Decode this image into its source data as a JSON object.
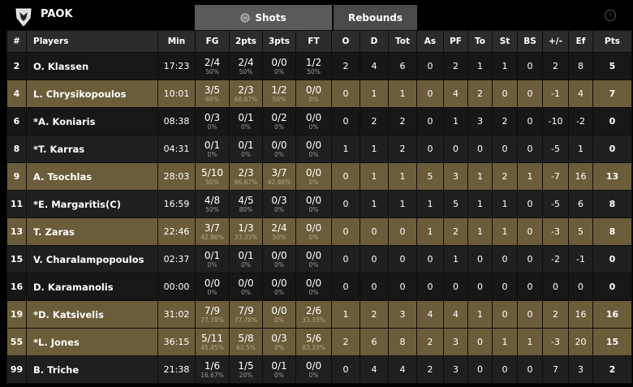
{
  "header": {
    "team": "PAOK",
    "logo_icon": "paok-eagle-crest",
    "tabs": [
      {
        "label": "Shots",
        "icon": "basketball-icon",
        "active": true
      },
      {
        "label": "Rebounds",
        "active": false
      }
    ],
    "info_icon": "info-icon"
  },
  "colors": {
    "highlight_row": "#6b5d3a",
    "dark_row": "#171717",
    "header": "#2b2b2b",
    "active_tab": "#5a5a5a"
  },
  "columns": [
    "#",
    "Players",
    "Min",
    "FG",
    "2pts",
    "3pts",
    "FT",
    "O",
    "D",
    "Tot",
    "As",
    "PF",
    "To",
    "St",
    "BS",
    "+/-",
    "Ef",
    "Pts"
  ],
  "rows": [
    {
      "no": "2",
      "name": "O. Klassen",
      "min": "17:23",
      "fg": "2/4",
      "fgp": "50%",
      "p2": "2/4",
      "p2p": "50%",
      "p3": "0/0",
      "p3p": "0%",
      "ft": "1/2",
      "ftp": "50%",
      "o": "2",
      "d": "4",
      "tot": "6",
      "as": "0",
      "pf": "2",
      "to": "1",
      "st": "1",
      "bs": "0",
      "pm": "2",
      "ef": "8",
      "pts": "5",
      "highlighted": false
    },
    {
      "no": "4",
      "name": "L. Chrysikopoulos",
      "min": "10:01",
      "fg": "3/5",
      "fgp": "60%",
      "p2": "2/3",
      "p2p": "66.67%",
      "p3": "1/2",
      "p3p": "50%",
      "ft": "0/0",
      "ftp": "0%",
      "o": "0",
      "d": "1",
      "tot": "1",
      "as": "0",
      "pf": "4",
      "to": "2",
      "st": "0",
      "bs": "0",
      "pm": "-1",
      "ef": "4",
      "pts": "7",
      "highlighted": true
    },
    {
      "no": "6",
      "name": "*A. Koniaris",
      "min": "08:38",
      "fg": "0/3",
      "fgp": "0%",
      "p2": "0/1",
      "p2p": "0%",
      "p3": "0/2",
      "p3p": "0%",
      "ft": "0/0",
      "ftp": "0%",
      "o": "0",
      "d": "2",
      "tot": "2",
      "as": "0",
      "pf": "1",
      "to": "3",
      "st": "2",
      "bs": "0",
      "pm": "-10",
      "ef": "-2",
      "pts": "0",
      "highlighted": false
    },
    {
      "no": "8",
      "name": "*T. Karras",
      "min": "04:31",
      "fg": "0/1",
      "fgp": "0%",
      "p2": "0/1",
      "p2p": "0%",
      "p3": "0/0",
      "p3p": "0%",
      "ft": "0/0",
      "ftp": "0%",
      "o": "1",
      "d": "1",
      "tot": "2",
      "as": "0",
      "pf": "0",
      "to": "0",
      "st": "0",
      "bs": "0",
      "pm": "-5",
      "ef": "1",
      "pts": "0",
      "highlighted": false
    },
    {
      "no": "9",
      "name": "A. Tsochlas",
      "min": "28:03",
      "fg": "5/10",
      "fgp": "50%",
      "p2": "2/3",
      "p2p": "66.67%",
      "p3": "3/7",
      "p3p": "42.86%",
      "ft": "0/0",
      "ftp": "0%",
      "o": "0",
      "d": "1",
      "tot": "1",
      "as": "5",
      "pf": "3",
      "to": "1",
      "st": "2",
      "bs": "1",
      "pm": "-7",
      "ef": "16",
      "pts": "13",
      "highlighted": true
    },
    {
      "no": "11",
      "name": "*E. Margaritis(C)",
      "min": "16:59",
      "fg": "4/8",
      "fgp": "50%",
      "p2": "4/5",
      "p2p": "80%",
      "p3": "0/3",
      "p3p": "0%",
      "ft": "0/0",
      "ftp": "0%",
      "o": "0",
      "d": "1",
      "tot": "1",
      "as": "1",
      "pf": "5",
      "to": "1",
      "st": "1",
      "bs": "0",
      "pm": "-5",
      "ef": "6",
      "pts": "8",
      "highlighted": false
    },
    {
      "no": "13",
      "name": "T. Zaras",
      "min": "22:46",
      "fg": "3/7",
      "fgp": "42.86%",
      "p2": "1/3",
      "p2p": "33.33%",
      "p3": "2/4",
      "p3p": "50%",
      "ft": "0/0",
      "ftp": "0%",
      "o": "0",
      "d": "0",
      "tot": "0",
      "as": "1",
      "pf": "2",
      "to": "1",
      "st": "1",
      "bs": "0",
      "pm": "-3",
      "ef": "5",
      "pts": "8",
      "highlighted": true
    },
    {
      "no": "15",
      "name": "V. Charalampopoulos",
      "min": "02:37",
      "fg": "0/1",
      "fgp": "0%",
      "p2": "0/1",
      "p2p": "0%",
      "p3": "0/0",
      "p3p": "0%",
      "ft": "0/0",
      "ftp": "0%",
      "o": "0",
      "d": "0",
      "tot": "0",
      "as": "0",
      "pf": "1",
      "to": "0",
      "st": "0",
      "bs": "0",
      "pm": "-2",
      "ef": "-1",
      "pts": "0",
      "highlighted": false
    },
    {
      "no": "16",
      "name": "D. Karamanolis",
      "min": "00:00",
      "fg": "0/0",
      "fgp": "0%",
      "p2": "0/0",
      "p2p": "0%",
      "p3": "0/0",
      "p3p": "0%",
      "ft": "0/0",
      "ftp": "0%",
      "o": "0",
      "d": "0",
      "tot": "0",
      "as": "0",
      "pf": "0",
      "to": "0",
      "st": "0",
      "bs": "0",
      "pm": "0",
      "ef": "0",
      "pts": "0",
      "highlighted": false
    },
    {
      "no": "19",
      "name": "*D. Katsivelis",
      "min": "31:02",
      "fg": "7/9",
      "fgp": "77.78%",
      "p2": "7/9",
      "p2p": "77.78%",
      "p3": "0/0",
      "p3p": "0%",
      "ft": "2/6",
      "ftp": "33.33%",
      "o": "1",
      "d": "2",
      "tot": "3",
      "as": "4",
      "pf": "4",
      "to": "1",
      "st": "0",
      "bs": "0",
      "pm": "2",
      "ef": "16",
      "pts": "16",
      "highlighted": true
    },
    {
      "no": "55",
      "name": "*L. Jones",
      "min": "36:15",
      "fg": "5/11",
      "fgp": "45.45%",
      "p2": "5/8",
      "p2p": "62.5%",
      "p3": "0/3",
      "p3p": "0%",
      "ft": "5/6",
      "ftp": "83.33%",
      "o": "2",
      "d": "6",
      "tot": "8",
      "as": "2",
      "pf": "3",
      "to": "0",
      "st": "1",
      "bs": "1",
      "pm": "-3",
      "ef": "20",
      "pts": "15",
      "highlighted": true
    },
    {
      "no": "99",
      "name": "B. Triche",
      "min": "21:38",
      "fg": "1/6",
      "fgp": "16.67%",
      "p2": "1/5",
      "p2p": "20%",
      "p3": "0/1",
      "p3p": "0%",
      "ft": "0/0",
      "ftp": "0%",
      "o": "0",
      "d": "4",
      "tot": "4",
      "as": "2",
      "pf": "3",
      "to": "0",
      "st": "0",
      "bs": "0",
      "pm": "7",
      "ef": "3",
      "pts": "2",
      "highlighted": false
    }
  ]
}
